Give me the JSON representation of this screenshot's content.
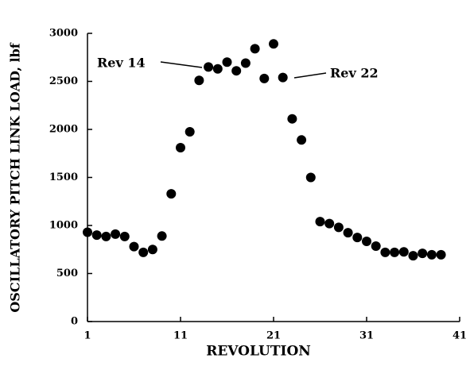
{
  "chart_data": {
    "type": "scatter",
    "xlabel": "REVOLUTION",
    "ylabel": "OSCILLATORY PITCH LINK LOAD, lbf",
    "x": [
      1,
      2,
      3,
      4,
      5,
      6,
      7,
      8,
      9,
      10,
      11,
      12,
      13,
      14,
      15,
      16,
      17,
      18,
      19,
      20,
      21,
      22,
      23,
      24,
      25,
      26,
      27,
      28,
      29,
      30,
      31,
      32,
      33,
      34,
      35,
      36,
      37,
      38,
      39
    ],
    "values": [
      930,
      900,
      885,
      910,
      885,
      780,
      720,
      750,
      890,
      1330,
      1810,
      1975,
      2510,
      2650,
      2630,
      2700,
      2610,
      2690,
      2840,
      2530,
      2890,
      2540,
      2110,
      1890,
      1500,
      1040,
      1020,
      980,
      925,
      875,
      835,
      785,
      720,
      720,
      725,
      685,
      710,
      695,
      695
    ],
    "color": "#000000",
    "xlim": [
      1,
      41
    ],
    "xticks": [
      1,
      11,
      21,
      31,
      41
    ],
    "ylim": [
      0,
      3000
    ],
    "yticks": [
      0,
      500,
      1000,
      1500,
      2000,
      2500,
      3000
    ],
    "annotations": [
      "Rev 14",
      "Rev 22"
    ]
  }
}
